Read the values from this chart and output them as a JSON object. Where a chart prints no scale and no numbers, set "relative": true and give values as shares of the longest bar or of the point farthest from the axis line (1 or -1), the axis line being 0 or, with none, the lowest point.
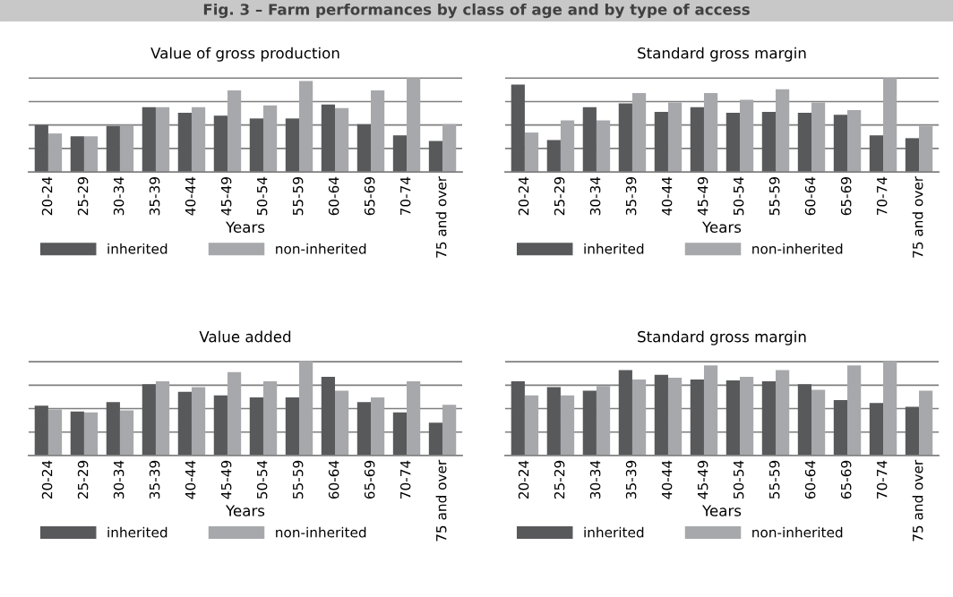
{
  "chart_data": [
    {
      "type": "bar",
      "title": "Value of gross production",
      "xlabel": "Years",
      "relative": true,
      "grid": "y",
      "legend": "bottom",
      "annotations": [
        "Fig. 3 – Farm performances by class of age and by type of access"
      ],
      "categories": [
        "20-24",
        "25-29",
        "30-34",
        "35-39",
        "40-44",
        "45-49",
        "50-54",
        "55-59",
        "60-64",
        "65-69",
        "70-74",
        "75 and over"
      ],
      "series": [
        {
          "name": "inherited",
          "color": "#58595b",
          "values": [
            0.5,
            0.38,
            0.49,
            0.69,
            0.63,
            0.6,
            0.57,
            0.57,
            0.72,
            0.51,
            0.39,
            0.33
          ]
        },
        {
          "name": "non-inherited",
          "color": "#a7a8ab",
          "values": [
            0.41,
            0.38,
            0.5,
            0.69,
            0.69,
            0.87,
            0.71,
            0.97,
            0.68,
            0.87,
            1.0,
            0.51
          ]
        }
      ]
    },
    {
      "type": "bar",
      "title": "Standard gross margin",
      "xlabel": "Years",
      "relative": true,
      "grid": "y",
      "legend": "bottom",
      "categories": [
        "20-24",
        "25-29",
        "30-34",
        "35-39",
        "40-44",
        "45-49",
        "50-54",
        "55-59",
        "60-64",
        "65-69",
        "70-74",
        "75 and over"
      ],
      "series": [
        {
          "name": "inherited",
          "color": "#58595b",
          "values": [
            0.93,
            0.34,
            0.69,
            0.73,
            0.64,
            0.69,
            0.63,
            0.64,
            0.63,
            0.61,
            0.39,
            0.36
          ]
        },
        {
          "name": "non-inherited",
          "color": "#a7a8ab",
          "values": [
            0.42,
            0.55,
            0.55,
            0.84,
            0.74,
            0.84,
            0.77,
            0.88,
            0.74,
            0.66,
            1.0,
            0.49
          ]
        }
      ]
    },
    {
      "type": "bar",
      "title": "Value added",
      "xlabel": "Years",
      "relative": true,
      "grid": "y",
      "legend": "bottom",
      "categories": [
        "20-24",
        "25-29",
        "30-34",
        "35-39",
        "40-44",
        "45-49",
        "50-54",
        "55-59",
        "60-64",
        "65-69",
        "70-74",
        "75 and over"
      ],
      "series": [
        {
          "name": "inherited",
          "color": "#58595b",
          "values": [
            0.53,
            0.47,
            0.57,
            0.76,
            0.68,
            0.64,
            0.62,
            0.62,
            0.84,
            0.57,
            0.46,
            0.35
          ]
        },
        {
          "name": "non-inherited",
          "color": "#a7a8ab",
          "values": [
            0.49,
            0.46,
            0.48,
            0.79,
            0.73,
            0.89,
            0.79,
            1.0,
            0.69,
            0.62,
            0.79,
            0.54
          ]
        }
      ]
    },
    {
      "type": "bar",
      "title": "Standard gross margin",
      "xlabel": "Years",
      "relative": true,
      "grid": "y",
      "legend": "bottom",
      "categories": [
        "20-24",
        "25-29",
        "30-34",
        "35-39",
        "40-44",
        "45-49",
        "50-54",
        "55-59",
        "60-64",
        "65-69",
        "70-74",
        "75 and over"
      ],
      "series": [
        {
          "name": "inherited",
          "color": "#58595b",
          "values": [
            0.79,
            0.73,
            0.69,
            0.91,
            0.86,
            0.81,
            0.8,
            0.79,
            0.76,
            0.59,
            0.56,
            0.52
          ]
        },
        {
          "name": "non-inherited",
          "color": "#a7a8ab",
          "values": [
            0.64,
            0.64,
            0.74,
            0.81,
            0.83,
            0.96,
            0.84,
            0.91,
            0.7,
            0.96,
            1.0,
            0.69
          ]
        }
      ]
    }
  ]
}
